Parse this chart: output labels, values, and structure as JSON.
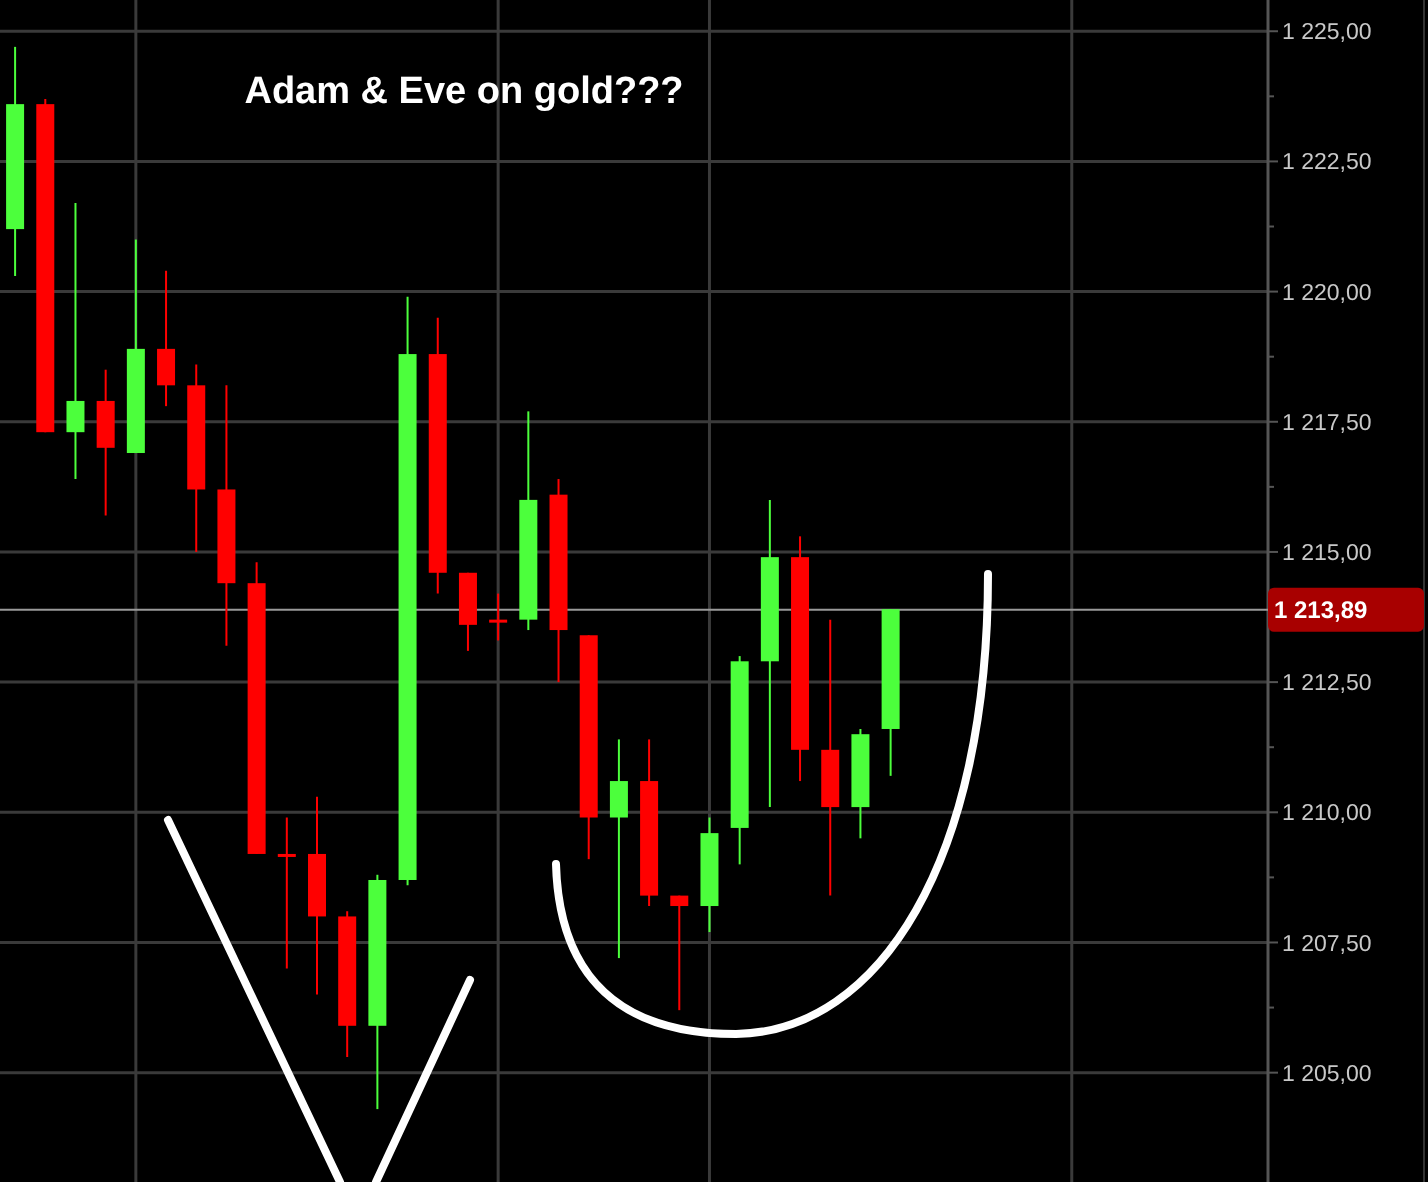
{
  "chart_data": {
    "type": "candlestick",
    "title": "Adam & Eve on gold???",
    "categories": [
      null,
      null,
      null,
      null,
      null,
      null,
      null,
      null,
      null,
      null,
      null,
      null,
      null,
      null,
      null,
      null,
      null,
      null,
      null,
      null,
      null,
      null,
      null,
      null,
      null,
      null,
      null,
      null,
      null,
      null,
      null,
      null,
      null,
      null,
      null,
      null,
      null,
      null,
      null,
      null,
      null,
      null
    ],
    "ohlc": [
      [
        1221.2,
        1224.7,
        1220.3,
        1223.6
      ],
      [
        1223.6,
        1223.7,
        1217.3,
        1217.3
      ],
      [
        1217.3,
        1221.7,
        1216.4,
        1217.9
      ],
      [
        1217.9,
        1218.5,
        1215.7,
        1217.0
      ],
      [
        1216.9,
        1221.0,
        1216.9,
        1218.9
      ],
      [
        1218.9,
        1220.4,
        1217.8,
        1218.2
      ],
      [
        1218.2,
        1218.6,
        1215.0,
        1216.2
      ],
      [
        1216.2,
        1218.2,
        1213.2,
        1214.4
      ],
      [
        1214.4,
        1214.8,
        1209.2,
        1209.2
      ],
      [
        1209.2,
        1209.9,
        1207.0,
        1209.2
      ],
      [
        1209.2,
        1210.3,
        1206.5,
        1208.0
      ],
      [
        1208.0,
        1208.1,
        1205.3,
        1205.9
      ],
      [
        1205.9,
        1208.8,
        1204.3,
        1208.7
      ],
      [
        1208.7,
        1219.9,
        1208.6,
        1218.8
      ],
      [
        1218.8,
        1219.5,
        1214.2,
        1214.6
      ],
      [
        1214.6,
        1214.6,
        1213.1,
        1213.6
      ],
      [
        1213.7,
        1214.2,
        1213.3,
        1213.7
      ],
      [
        1213.7,
        1217.7,
        1213.5,
        1216.0
      ],
      [
        1216.1,
        1216.4,
        1212.5,
        1213.5
      ],
      [
        1213.4,
        1213.4,
        1209.1,
        1209.9
      ],
      [
        1209.9,
        1211.4,
        1207.2,
        1210.6
      ],
      [
        1210.6,
        1211.4,
        1208.2,
        1208.4
      ],
      [
        1208.4,
        1208.4,
        1206.2,
        1208.2
      ],
      [
        1208.2,
        1209.9,
        1207.7,
        1209.6
      ],
      [
        1209.7,
        1213.0,
        1209.0,
        1212.9
      ],
      [
        1212.9,
        1216.0,
        1210.1,
        1214.9
      ],
      [
        1214.9,
        1215.3,
        1210.6,
        1211.2
      ],
      [
        1211.2,
        1213.7,
        1208.4,
        1210.1
      ],
      [
        1210.1,
        1211.6,
        1209.5,
        1211.5
      ],
      [
        1211.6,
        1213.9,
        1210.7,
        1213.9
      ],
      null,
      null,
      null,
      null,
      null,
      null,
      null,
      null,
      null,
      null,
      null,
      null
    ],
    "colors": [
      "#4cff3c",
      "#ff0000",
      "#4cff3c",
      "#ff0000",
      "#4cff3c",
      "#ff0000",
      "#ff0000",
      "#ff0000",
      "#ff0000",
      "#ff0000",
      "#ff0000",
      "#ff0000",
      "#4cff3c",
      "#4cff3c",
      "#ff0000",
      "#ff0000",
      "#ff0000",
      "#4cff3c",
      "#ff0000",
      "#ff0000",
      "#4cff3c",
      "#ff0000",
      "#ff0000",
      "#4cff3c",
      "#4cff3c",
      "#4cff3c",
      "#ff0000",
      "#ff0000",
      "#4cff3c",
      "#4cff3c",
      null,
      null,
      null,
      null,
      null,
      null,
      null,
      null,
      null,
      null,
      null,
      null
    ],
    "ylim": [
      1202.9,
      1225.6
    ],
    "yticks": [
      {
        "value": 1205,
        "label": "1 205,00"
      },
      {
        "value": 1206.25,
        "label": null
      },
      {
        "value": 1207.5,
        "label": "1 207,50"
      },
      {
        "value": 1208.75,
        "label": null
      },
      {
        "value": 1210,
        "label": "1 210,00"
      },
      {
        "value": 1211.25,
        "label": null
      },
      {
        "value": 1212.5,
        "label": "1 212,50"
      },
      {
        "value": 1213.75,
        "label": null
      },
      {
        "value": 1215,
        "label": "1 215,00"
      },
      {
        "value": 1216.25,
        "label": null
      },
      {
        "value": 1217.5,
        "label": "1 217,50"
      },
      {
        "value": 1218.75,
        "label": null
      },
      {
        "value": 1220,
        "label": "1 220,00"
      },
      {
        "value": 1221.25,
        "label": null
      },
      {
        "value": 1222.5,
        "label": "1 222,50"
      },
      {
        "value": 1223.75,
        "label": null
      },
      {
        "value": 1225,
        "label": "1 225,00"
      }
    ],
    "grid": true,
    "tick_labels": "y",
    "ref_lines": [
      {
        "axis": "y",
        "value": 1213.89,
        "label": "1 213,89",
        "color": "#9a9a9a"
      }
    ]
  }
}
